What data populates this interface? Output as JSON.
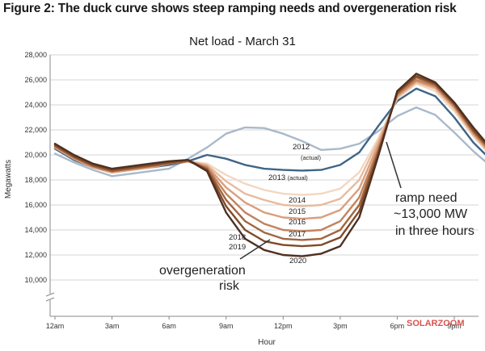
{
  "figure_title": "Figure 2: The duck curve shows steep ramping needs and overgeneration risk",
  "watermark": "SOLARZOOM",
  "chart_data": {
    "type": "line",
    "title": "Net load - March 31",
    "xlabel": "Hour",
    "ylabel": "Megawatts",
    "x_ticks": [
      "12am",
      "3am",
      "6am",
      "9am",
      "12pm",
      "3pm",
      "6pm",
      "9pm"
    ],
    "y_ticks": [
      10000,
      12000,
      14000,
      16000,
      18000,
      20000,
      22000,
      24000,
      26000,
      28000
    ],
    "y_ticks_display": [
      "10,000",
      "12,000",
      "14,000",
      "16,000",
      "18,000",
      "20,000",
      "22,000",
      "24,000",
      "26,000",
      "28,000"
    ],
    "ylim": [
      8000,
      28000
    ],
    "y_axis_break": true,
    "grid": "horizontal",
    "x": [
      0,
      1,
      2,
      3,
      4,
      5,
      6,
      7,
      8,
      9,
      10,
      11,
      12,
      13,
      14,
      15,
      16,
      17,
      18,
      19,
      20,
      21,
      22,
      23
    ],
    "series": [
      {
        "name": "2012 (actual)",
        "color": "#a9b9c9",
        "values": [
          20100,
          19400,
          18800,
          18300,
          18500,
          18700,
          18900,
          19700,
          20600,
          21700,
          22200,
          22150,
          21700,
          21100,
          20400,
          20500,
          20900,
          21900,
          23100,
          23800,
          23200,
          21800,
          20300,
          19000
        ]
      },
      {
        "name": "2013 (actual)",
        "color": "#3e6587",
        "values": [
          20500,
          19600,
          19000,
          18600,
          18800,
          19000,
          19200,
          19500,
          20000,
          19700,
          19200,
          18900,
          18800,
          18750,
          18800,
          19200,
          20200,
          22300,
          24300,
          25300,
          24700,
          23000,
          21000,
          19500
        ]
      },
      {
        "name": "2014",
        "color": "#f3d7c2",
        "values": [
          20600,
          19700,
          19000,
          18600,
          18800,
          19000,
          19300,
          19500,
          19300,
          18400,
          17700,
          17200,
          16900,
          16800,
          16900,
          17300,
          18600,
          21300,
          24500,
          25700,
          25100,
          23500,
          21500,
          19800
        ]
      },
      {
        "name": "2015",
        "color": "#e8bb9d",
        "values": [
          20600,
          19700,
          19000,
          18600,
          18800,
          19000,
          19300,
          19500,
          19200,
          17900,
          16900,
          16400,
          16000,
          15900,
          16000,
          16500,
          18000,
          21100,
          24600,
          25800,
          25300,
          23700,
          21600,
          19900
        ]
      },
      {
        "name": "2016",
        "color": "#d99f7c",
        "values": [
          20600,
          19700,
          19000,
          18600,
          18800,
          19000,
          19300,
          19500,
          19100,
          17400,
          16200,
          15400,
          15000,
          14900,
          15000,
          15600,
          17300,
          20800,
          24700,
          25900,
          25400,
          23800,
          21700,
          20000
        ]
      },
      {
        "name": "2017",
        "color": "#c3835c",
        "values": [
          20700,
          19800,
          19100,
          18700,
          18900,
          19100,
          19300,
          19500,
          19000,
          16900,
          15400,
          14500,
          14000,
          13900,
          14000,
          14700,
          16600,
          20500,
          24800,
          26000,
          25500,
          23900,
          21800,
          20100
        ]
      },
      {
        "name": "2018",
        "color": "#a1663f",
        "values": [
          20700,
          19800,
          19100,
          18700,
          18900,
          19100,
          19300,
          19500,
          18900,
          16400,
          14700,
          13800,
          13300,
          13200,
          13300,
          14000,
          16000,
          20300,
          24900,
          26200,
          25600,
          24000,
          21900,
          20200
        ]
      },
      {
        "name": "2019",
        "color": "#7f4a28",
        "values": [
          20800,
          19900,
          19200,
          18800,
          19000,
          19200,
          19400,
          19600,
          18800,
          15900,
          14000,
          13100,
          12800,
          12700,
          12800,
          13400,
          15500,
          20100,
          25000,
          26300,
          25700,
          24100,
          22000,
          20300
        ]
      },
      {
        "name": "2020",
        "color": "#4e3021",
        "values": [
          20900,
          20000,
          19300,
          18900,
          19100,
          19300,
          19500,
          19600,
          18700,
          15400,
          13300,
          12400,
          12000,
          11900,
          12100,
          12700,
          15000,
          19900,
          25100,
          26500,
          25800,
          24200,
          22200,
          20400
        ]
      }
    ],
    "annotations": [
      {
        "text": "ramp need",
        "key": "ramp1"
      },
      {
        "text": "~13,000 MW",
        "key": "ramp2"
      },
      {
        "text": "in three hours",
        "key": "ramp3"
      },
      {
        "text": "overgeneration",
        "key": "over1"
      },
      {
        "text": "risk",
        "key": "over2"
      }
    ]
  }
}
